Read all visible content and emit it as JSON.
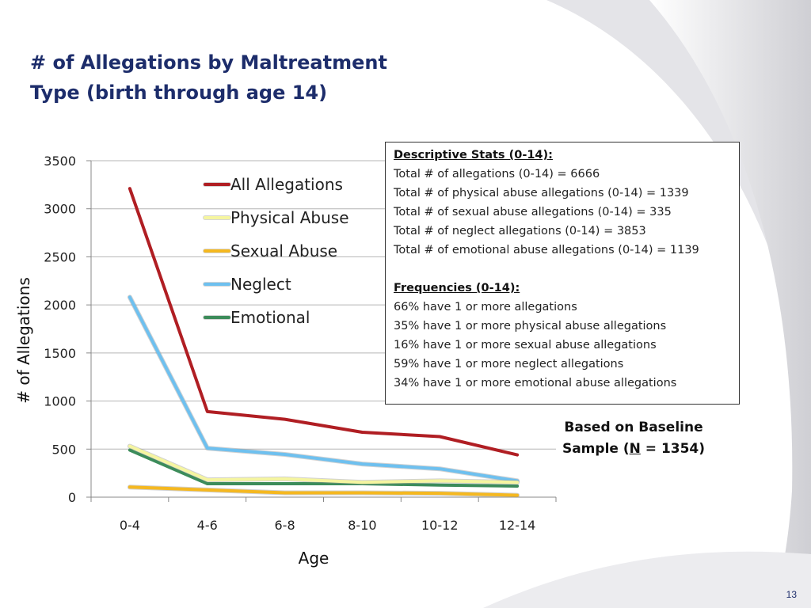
{
  "slide": {
    "title_line1": "# of Allegations by Maltreatment",
    "title_line2": "Type (birth through age 14)",
    "page_number": "13"
  },
  "stats_box": {
    "descriptive_heading": "Descriptive Stats (0-14):",
    "descriptive_lines": [
      "Total # of allegations (0-14) = 6666",
      "Total # of physical abuse allegations (0-14) = 1339",
      "Total # of sexual abuse allegations (0-14) = 335",
      "Total # of neglect allegations (0-14) = 3853",
      "Total # of emotional abuse allegations (0-14) = 1139"
    ],
    "frequencies_heading": "Frequencies (0-14):",
    "frequency_lines": [
      "66% have 1 or more allegations",
      "35% have 1 or more physical abuse allegations",
      "16% have 1 or more sexual abuse allegations",
      "59% have 1 or more neglect allegations",
      "34% have 1 or more emotional abuse allegations"
    ]
  },
  "note": {
    "line1": "Based on Baseline",
    "line2_prefix": "Sample (",
    "line2_n": "N",
    "line2_suffix": " = 1354)"
  },
  "chart_data": {
    "type": "line",
    "title": "# of Allegations by Maltreatment Type (birth through age 14)",
    "xlabel": "Age",
    "ylabel": "# of Allegations",
    "categories": [
      "0-4",
      "4-6",
      "6-8",
      "8-10",
      "10-12",
      "12-14"
    ],
    "ylim": [
      0,
      3500
    ],
    "yticks": [
      0,
      500,
      1000,
      1500,
      2000,
      2500,
      3000,
      3500
    ],
    "grid": true,
    "legend_position": "top-center",
    "series": [
      {
        "name": "All Allegations",
        "color": "#b01e23",
        "values": [
          3210,
          890,
          810,
          675,
          630,
          440
        ]
      },
      {
        "name": "Physical Abuse",
        "color": "#f5f5a0",
        "values": [
          530,
          180,
          190,
          155,
          170,
          155
        ]
      },
      {
        "name": "Sexual Abuse",
        "color": "#f5b820",
        "values": [
          105,
          75,
          45,
          45,
          40,
          20
        ]
      },
      {
        "name": "Neglect",
        "color": "#6ec0ef",
        "values": [
          2080,
          510,
          445,
          345,
          295,
          170
        ]
      },
      {
        "name": "Emotional",
        "color": "#3c8c5a",
        "values": [
          490,
          140,
          140,
          140,
          125,
          115
        ]
      }
    ]
  }
}
